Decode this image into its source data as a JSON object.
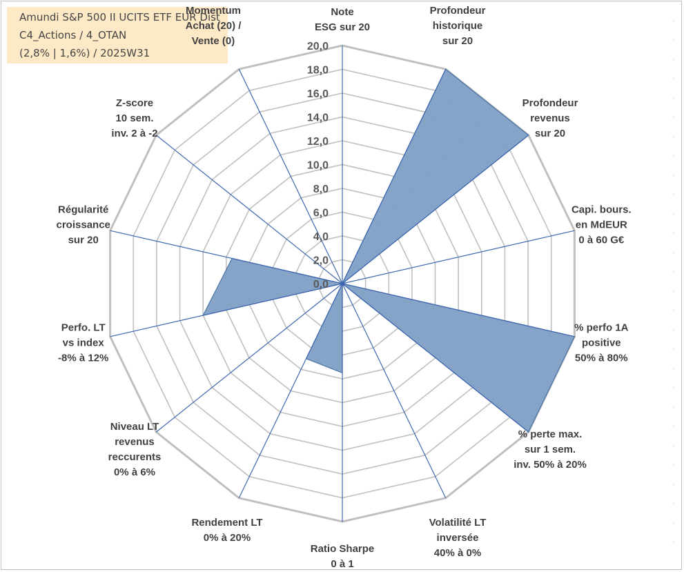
{
  "title": {
    "line1": "Amundi S&P 500 II UCITS ETF EUR Dist",
    "line2": "C4_Actions / 4_OTAN",
    "line3": "(2,8% | 1,6%) / 2025W31"
  },
  "colors": {
    "area_fill": "#7f9fc4",
    "area_stroke": "#4a73a8",
    "spoke": "#3d66b0",
    "grid": "#bfbfbf",
    "highlight_label": "#b09a6a"
  },
  "chart_data": {
    "type": "radar",
    "rlim": [
      0,
      20
    ],
    "ticks": [
      "0,0",
      "2,0",
      "4,0",
      "6,0",
      "8,0",
      "10,0",
      "12,0",
      "14,0",
      "16,0",
      "18,0",
      "20,0"
    ],
    "grid": true,
    "axes": [
      {
        "lines": [
          "Note",
          "ESG sur 20"
        ]
      },
      {
        "lines": [
          "Profondeur",
          "historique",
          "sur 20"
        ]
      },
      {
        "lines": [
          "Profondeur",
          "revenus",
          "sur 20"
        ]
      },
      {
        "lines": [
          "Capi. bours.",
          "en MdEUR",
          "0 à 60 G€"
        ]
      },
      {
        "lines": [
          "% perfo 1A",
          "positive",
          "50% à 80%"
        ]
      },
      {
        "lines": [
          "% perte max.",
          "sur 1 sem.",
          "inv. 50% à 20%"
        ]
      },
      {
        "lines": [
          "Volatilité LT",
          "inversée",
          "40% à 0%"
        ]
      },
      {
        "lines": [
          "Ratio Sharpe",
          "0 à 1"
        ]
      },
      {
        "lines": [
          "Rendement LT",
          "0% à 20%"
        ]
      },
      {
        "lines": [
          "Niveau LT",
          "revenus",
          "reccurents",
          "0% à 6%"
        ]
      },
      {
        "lines": [
          "Perfo. LT",
          "vs index",
          "-8% à 12%"
        ]
      },
      {
        "lines": [
          "Régularité",
          "croissance",
          "sur 20"
        ]
      },
      {
        "lines": [
          "Z-score",
          "10 sem.",
          "inv. 2 à -2"
        ]
      },
      {
        "lines": [
          "Momentum",
          "Achat (20) /",
          "Vente (0)"
        ]
      }
    ],
    "values": [
      0,
      20,
      20,
      0,
      20,
      20,
      0,
      7.5,
      7,
      0,
      12,
      9.5,
      0,
      0
    ]
  }
}
